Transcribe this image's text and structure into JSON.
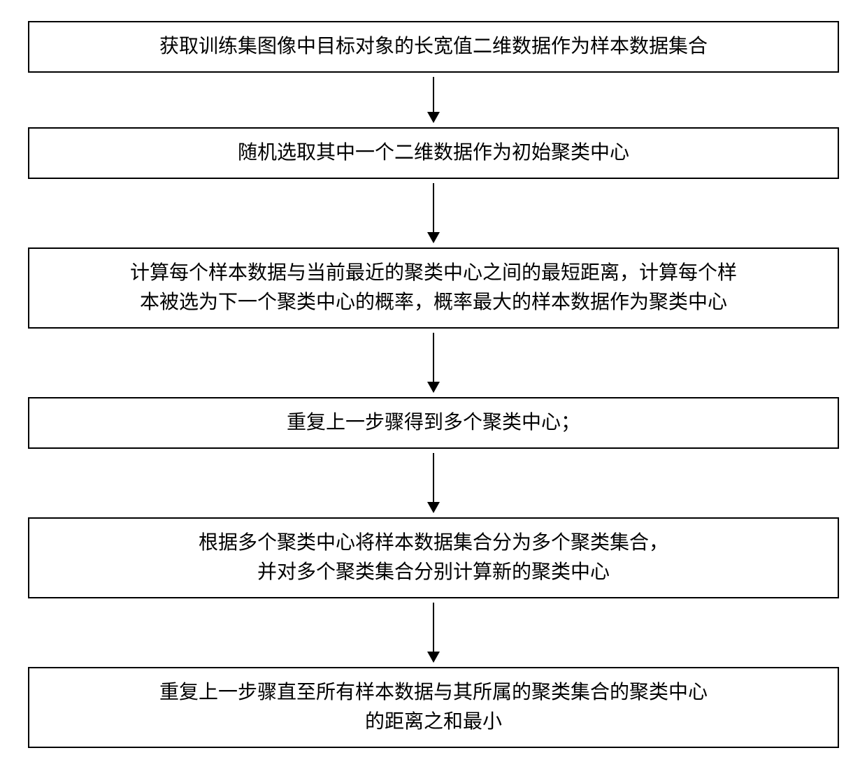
{
  "flowchart": {
    "type": "flowchart",
    "direction": "vertical",
    "background_color": "#ffffff",
    "box_border_color": "#000000",
    "box_border_width": 2,
    "box_background": "#ffffff",
    "text_color": "#000000",
    "font_family": "SimSun",
    "font_size_pt": 21,
    "arrow_color": "#000000",
    "arrow_line_width": 2,
    "steps": [
      {
        "id": "step1",
        "lines": [
          "获取训练集图像中目标对象的长宽值二维数据作为样本数据集合"
        ],
        "arrow_after_height": 50
      },
      {
        "id": "step2",
        "lines": [
          "随机选取其中一个二维数据作为初始聚类中心"
        ],
        "arrow_after_height": 70
      },
      {
        "id": "step3",
        "lines": [
          "计算每个样本数据与当前最近的聚类中心之间的最短距离，计算每个样",
          "本被选为下一个聚类中心的概率，概率最大的样本数据作为聚类中心"
        ],
        "arrow_after_height": 70
      },
      {
        "id": "step4",
        "lines": [
          "重复上一步骤得到多个聚类中心；"
        ],
        "arrow_after_height": 70
      },
      {
        "id": "step5",
        "lines": [
          "根据多个聚类中心将样本数据集合分为多个聚类集合，",
          "并对多个聚类集合分别计算新的聚类中心"
        ],
        "arrow_after_height": 70
      },
      {
        "id": "step6",
        "lines": [
          "重复上一步骤直至所有样本数据与其所属的聚类集合的聚类中心",
          "的距离之和最小"
        ],
        "arrow_after_height": null
      }
    ]
  }
}
